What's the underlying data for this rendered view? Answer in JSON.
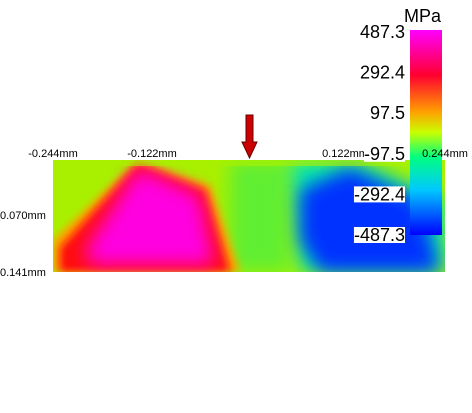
{
  "colorbar": {
    "unit": "MPa",
    "ticks": [
      487.3,
      292.4,
      97.5,
      -97.5,
      -292.4,
      -487.3
    ]
  },
  "axis_labels": {
    "top": [
      "-0.244mm",
      "-0.122mm",
      "0.122mm",
      "0.244mm"
    ],
    "left": [
      "0.070mm",
      "0.141mm"
    ]
  }
}
